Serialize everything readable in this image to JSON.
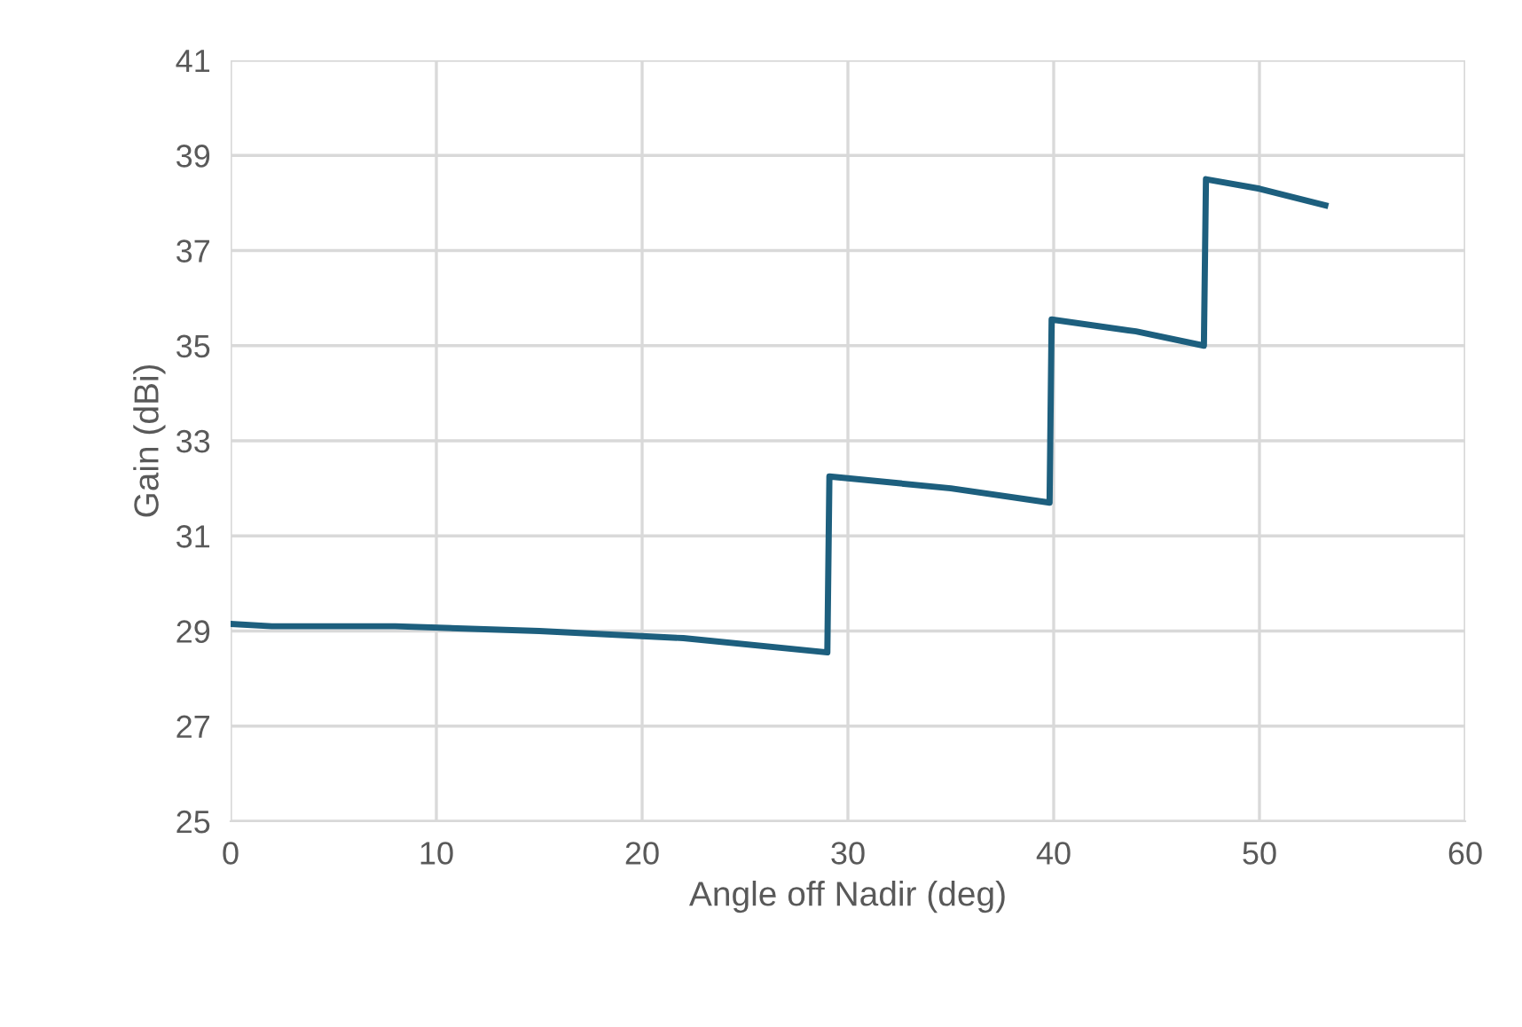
{
  "chart_data": {
    "type": "line",
    "xlabel": "Angle off Nadir (deg)",
    "ylabel": "Gain (dBi)",
    "series": [
      {
        "color": "#1d5f7e",
        "x": [
          0,
          2,
          8,
          15,
          22,
          29,
          29.1,
          35,
          39.8,
          39.9,
          44,
          47.3,
          47.4,
          50,
          53.2
        ],
        "values": [
          29.15,
          29.1,
          29.1,
          29.0,
          28.85,
          28.55,
          32.25,
          32.0,
          31.7,
          35.55,
          35.3,
          35.0,
          38.5,
          38.3,
          37.95
        ]
      }
    ],
    "xlim": [
      0,
      60
    ],
    "xticks": [
      0,
      10,
      20,
      30,
      40,
      50,
      60
    ],
    "ylim": [
      25,
      41
    ],
    "yticks": [
      25,
      27,
      29,
      31,
      33,
      35,
      37,
      39,
      41
    ],
    "grid": true,
    "marker": "none",
    "line_style": "solid"
  }
}
